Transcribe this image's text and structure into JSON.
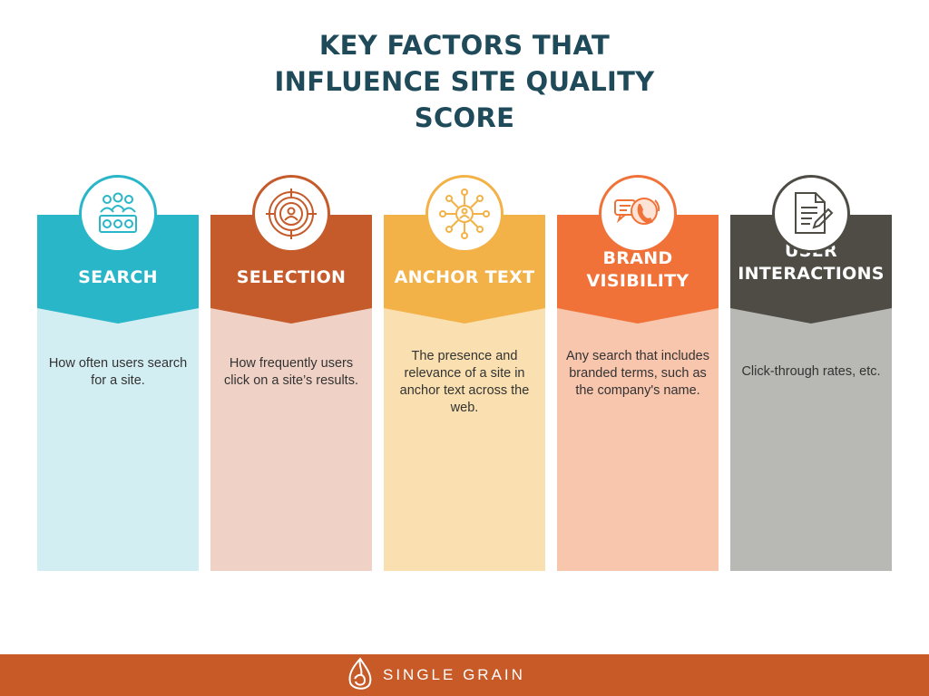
{
  "title_lines": [
    "KEY FACTORS THAT",
    "INFLUENCE SITE QUALITY",
    "SCORE"
  ],
  "columns": [
    {
      "label_lines": [
        "SEARCH"
      ],
      "description": "How often users search for a site.",
      "header_color": "#29b6c8",
      "body_color": "#d3eef2",
      "icon": "people-group-icon"
    },
    {
      "label_lines": [
        "SELECTION"
      ],
      "description": "How frequently users click on a site’s results.",
      "header_color": "#c55a2a",
      "body_color": "#efd2c5",
      "icon": "target-user-icon"
    },
    {
      "label_lines": [
        "ANCHOR TEXT"
      ],
      "description": "The presence and relevance of a site in anchor text across the web.",
      "header_color": "#f3b247",
      "body_color": "#fae0b0",
      "icon": "network-icon"
    },
    {
      "label_lines": [
        "BRAND",
        "VISIBILITY"
      ],
      "description": "Any search that includes branded terms, such as the company's name.",
      "header_color": "#f07238",
      "body_color": "#f8c5ad",
      "icon": "phone-chat-icon"
    },
    {
      "label_lines": [
        "USER",
        "INTERACTIONS"
      ],
      "description": "Click-through rates, etc.",
      "header_color": "#4e4c45",
      "body_color": "#b8b8b5",
      "icon": "document-pen-icon"
    }
  ],
  "footer": {
    "brand": "SINGLE GRAIN",
    "color": "#c85a28"
  }
}
